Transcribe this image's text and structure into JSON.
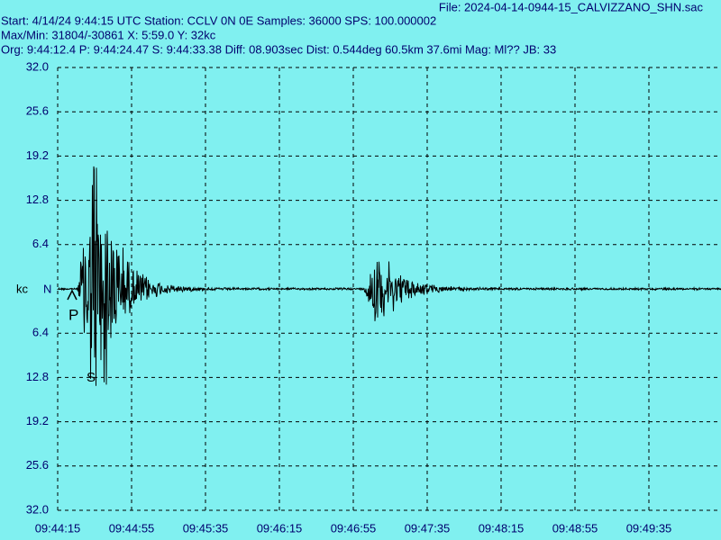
{
  "header": {
    "file": "File: 2024-04-14-0944-15_CALVIZZANO_SHN.sac",
    "start": "Start: 4/14/24  9:44:15 UTC Station: CCLV 0N 0E Samples: 36000  SPS: 100.000002",
    "maxmin": "Max/Min: 31804/-30861 X: 5:59.0 Y: 32kc",
    "origin": "Org: 9:44:12.4 P: 9:44:24.47 S: 9:44:33.38 Diff: 08.903sec Dist: 0.544deg 60.5km 37.6mi  Mag: Ml?? JB: 33"
  },
  "y_axis": {
    "unit": "kc",
    "channel": "N",
    "labels_upper": [
      "32.0",
      "25.6",
      "19.2",
      "12.8",
      "6.4"
    ],
    "labels_lower": [
      "6.4",
      "12.8",
      "19.2",
      "25.6",
      "32.0"
    ]
  },
  "x_axis": {
    "labels": [
      "09:44:15",
      "09:44:55",
      "09:45:35",
      "09:46:15",
      "09:46:55",
      "09:47:35",
      "09:48:15",
      "09:48:55",
      "09:49:35"
    ]
  },
  "markers": {
    "p": "P",
    "s": "S"
  }
}
